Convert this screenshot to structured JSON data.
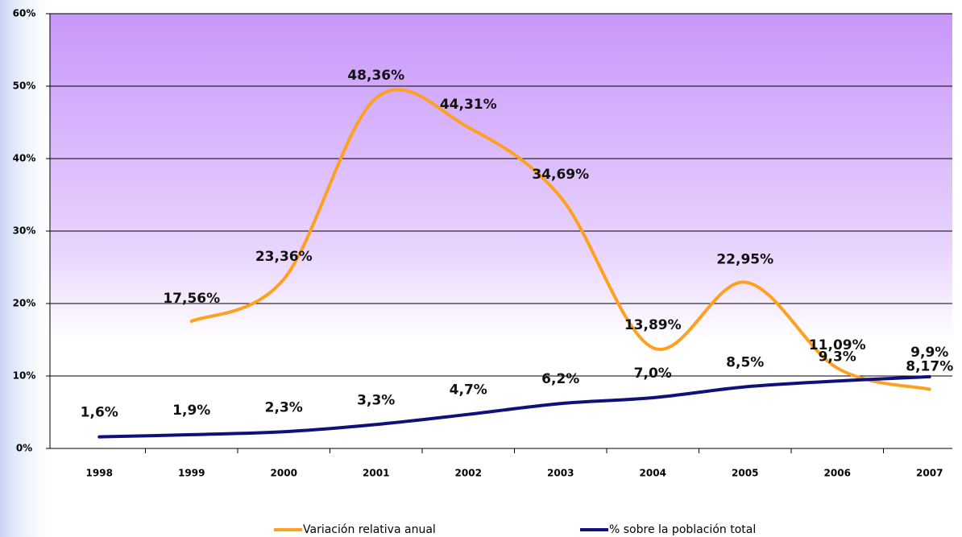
{
  "chart_data": {
    "type": "line",
    "categories": [
      "1998",
      "1999",
      "2000",
      "2001",
      "2002",
      "2003",
      "2004",
      "2005",
      "2006",
      "2007"
    ],
    "series": [
      {
        "name": "Variación relativa anual",
        "color": "#ffa020",
        "values": [
          null,
          17.56,
          23.36,
          48.36,
          44.31,
          34.69,
          13.89,
          22.95,
          11.09,
          8.17
        ],
        "value_labels": [
          null,
          "17,56%",
          "23,36%",
          "48,36%",
          "44,31%",
          "34,69%",
          "13,89%",
          "22,95%",
          "11,09%",
          "8,17%"
        ]
      },
      {
        "name": "% sobre la población total",
        "color": "#10107a",
        "values": [
          1.6,
          1.9,
          2.3,
          3.3,
          4.7,
          6.2,
          7.0,
          8.5,
          9.3,
          9.9
        ],
        "value_labels": [
          "1,6%",
          "1,9%",
          "2,3%",
          "3,3%",
          "4,7%",
          "6,2%",
          "7,0%",
          "8,5%",
          "9,3%",
          "9,9%"
        ]
      }
    ],
    "ylim": [
      0,
      60
    ],
    "yticks": [
      {
        "value": 0,
        "label": "0%"
      },
      {
        "value": 10,
        "label": "10%"
      },
      {
        "value": 20,
        "label": "20%"
      },
      {
        "value": 30,
        "label": "30%"
      },
      {
        "value": 40,
        "label": "40%"
      },
      {
        "value": 50,
        "label": "50%"
      },
      {
        "value": 60,
        "label": "60%"
      }
    ],
    "grid": true,
    "legend": "bottom"
  }
}
